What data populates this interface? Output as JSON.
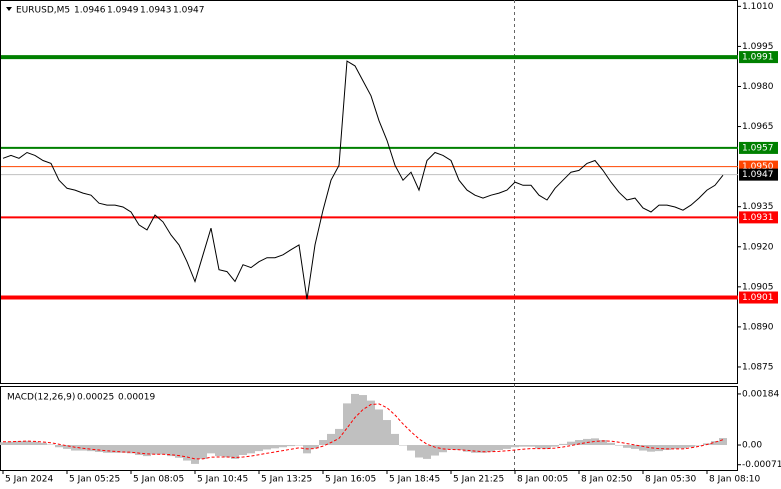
{
  "chart_data": [
    {
      "type": "line",
      "symbol": "EURUSD,M5",
      "ohlc": [
        1.0946,
        1.0949,
        1.0943,
        1.0947
      ],
      "categories": [
        "5 Jan 2024",
        null,
        null,
        null,
        null,
        null,
        null,
        null,
        "5 Jan 05:25",
        null,
        null,
        null,
        null,
        null,
        null,
        null,
        "5 Jan 08:05",
        null,
        null,
        null,
        null,
        null,
        null,
        null,
        "5 Jan 10:45",
        null,
        null,
        null,
        null,
        null,
        null,
        null,
        "5 Jan 13:25",
        null,
        null,
        null,
        null,
        null,
        null,
        null,
        "5 Jan 16:05",
        null,
        null,
        null,
        null,
        null,
        null,
        null,
        "5 Jan 18:45",
        null,
        null,
        null,
        null,
        null,
        null,
        null,
        "5 Jan 21:25",
        null,
        null,
        null,
        null,
        null,
        null,
        null,
        "8 Jan 00:05",
        null,
        null,
        null,
        null,
        null,
        null,
        null,
        "8 Jan 02:50",
        null,
        null,
        null,
        null,
        null,
        null,
        null,
        "8 Jan 05:30",
        null,
        null,
        null,
        null,
        null,
        null,
        null,
        "8 Jan 08:10",
        null,
        null
      ],
      "values": [
        1.09531,
        1.09542,
        1.09531,
        1.09553,
        1.09542,
        1.09523,
        1.09512,
        1.09449,
        1.09419,
        1.09412,
        1.09401,
        1.09393,
        1.09363,
        1.09356,
        1.09356,
        1.09349,
        1.0933,
        1.09282,
        1.09263,
        1.09319,
        1.09293,
        1.09244,
        1.09207,
        1.09144,
        1.0907,
        1.0917,
        1.0927,
        1.09114,
        1.09107,
        1.0907,
        1.09133,
        1.09122,
        1.09144,
        1.09159,
        1.09159,
        1.0917,
        1.09189,
        1.09207,
        1.09003,
        1.09207,
        1.09337,
        1.09449,
        1.09505,
        1.09895,
        1.09877,
        1.09821,
        1.09765,
        1.09672,
        1.09598,
        1.09505,
        1.09449,
        1.09479,
        1.09412,
        1.09523,
        1.09553,
        1.09542,
        1.09523,
        1.09449,
        1.09412,
        1.09393,
        1.09382,
        1.09393,
        1.09401,
        1.09412,
        1.09442,
        1.0943,
        1.0943,
        1.09393,
        1.09375,
        1.09419,
        1.09449,
        1.09479,
        1.09486,
        1.09512,
        1.09523,
        1.09486,
        1.09442,
        1.09404,
        1.09375,
        1.09382,
        1.09345,
        1.0933,
        1.09356,
        1.09356,
        1.09349,
        1.09337,
        1.09356,
        1.09382,
        1.09412,
        1.0943,
        1.09468
      ],
      "color": "#000000",
      "ylim": [
        1.0869,
        1.1012
      ],
      "yticks": [
        {
          "value": 1.101,
          "label": "1.1010"
        },
        1.0995,
        {
          "value": 1.098,
          "label": "1.0980"
        },
        1.0965,
        1.0935,
        {
          "value": 1.092,
          "label": "1.0920"
        },
        1.0905,
        {
          "value": 1.089,
          "label": "1.0890"
        },
        1.0875
      ],
      "levels": [
        {
          "value": 1.0991,
          "label": "1.0991",
          "color": "#008000"
        },
        {
          "value": 1.0957,
          "label": "1.0957",
          "color": "#008000"
        },
        {
          "value": 1.095,
          "label": "1.0950",
          "color": "#ff4500"
        },
        {
          "value": 1.0931,
          "label": "1.0931",
          "color": "#ff0000"
        },
        {
          "value": 1.0901,
          "label": "1.0901",
          "color": "#ff0000"
        }
      ],
      "last": {
        "value": 1.0947,
        "label": "1.0947",
        "color": "#c0c0c0"
      }
    },
    {
      "type": "macd",
      "title": "MACD(12,26,9)",
      "histogram": {
        "color": "#c0c0c0",
        "values": [
          0.0001,
          0.00012,
          0.00014,
          0.00015,
          0.00012,
          8e-05,
          2e-05,
          -8e-05,
          -0.00014,
          -0.0002,
          -0.0002,
          -0.00022,
          -0.00025,
          -0.00028,
          -0.00028,
          -0.00028,
          -0.0003,
          -0.00036,
          -0.0004,
          -0.00034,
          -0.00034,
          -0.0004,
          -0.00046,
          -0.00056,
          -0.00068,
          -0.0005,
          -0.0003,
          -0.0004,
          -0.00044,
          -0.0005,
          -0.00036,
          -0.0003,
          -0.00022,
          -0.00016,
          -0.00012,
          -8e-05,
          -4e-05,
          0,
          -0.0003,
          -0.00012,
          0.00018,
          0.0004,
          0.00058,
          0.0015,
          0.00184,
          0.0018,
          0.0016,
          0.00128,
          0.0009,
          0.0004,
          0,
          -0.0002,
          -0.00045,
          -0.0005,
          -0.00038,
          -0.00026,
          -0.00016,
          -0.00018,
          -0.00024,
          -0.00028,
          -0.00028,
          -0.00024,
          -0.00018,
          -0.00014,
          -8e-05,
          -6e-05,
          -6e-05,
          -0.00012,
          -0.00014,
          -6e-05,
          4e-05,
          0.00012,
          0.00018,
          0.00022,
          0.00024,
          0.00018,
          8e-05,
          -2e-05,
          -0.0001,
          -0.00014,
          -0.0002,
          -0.00024,
          -0.00022,
          -0.00018,
          -0.00014,
          -0.00012,
          -8e-05,
          -2e-05,
          6e-05,
          0.00014,
          0.00025
        ]
      },
      "signal": {
        "color": "#ff0000",
        "values": [
          0.00012,
          0.00012,
          0.00013,
          0.00014,
          0.00013,
          0.00011,
          8e-05,
          3e-05,
          -3e-05,
          -8e-05,
          -0.00012,
          -0.00015,
          -0.00018,
          -0.00021,
          -0.00023,
          -0.00025,
          -0.00026,
          -0.00029,
          -0.00032,
          -0.00033,
          -0.00033,
          -0.00035,
          -0.00038,
          -0.00043,
          -0.0005,
          -0.0005,
          -0.00044,
          -0.00043,
          -0.00043,
          -0.00045,
          -0.00043,
          -0.0004,
          -0.00035,
          -0.0003,
          -0.00025,
          -0.0002,
          -0.00015,
          -0.0001,
          -0.00014,
          -0.00013,
          -4e-05,
          9e-05,
          0.00024,
          0.00061,
          0.00099,
          0.00128,
          0.00146,
          0.00148,
          0.00134,
          0.00108,
          0.00076,
          0.00048,
          0.00022,
          3e-05,
          -8e-05,
          -0.00014,
          -0.00016,
          -0.00017,
          -0.00019,
          -0.00022,
          -0.00024,
          -0.00024,
          -0.00023,
          -0.00021,
          -0.00018,
          -0.00015,
          -0.00013,
          -0.00013,
          -0.00013,
          -0.00011,
          -7e-05,
          -2e-05,
          4e-05,
          9e-05,
          0.00013,
          0.00015,
          0.00014,
          0.0001,
          5e-05,
          0,
          -5e-05,
          -0.0001,
          -0.00013,
          -0.00014,
          -0.00014,
          -0.00014,
          -0.0001,
          -5e-05,
          2e-05,
          0.0001,
          0.00019
        ]
      },
      "ylim": [
        -0.0009,
        0.00209
      ],
      "yticks": [
        0.00184,
        {
          "value": 0,
          "label": "0.00"
        },
        -0.00071
      ]
    }
  ]
}
